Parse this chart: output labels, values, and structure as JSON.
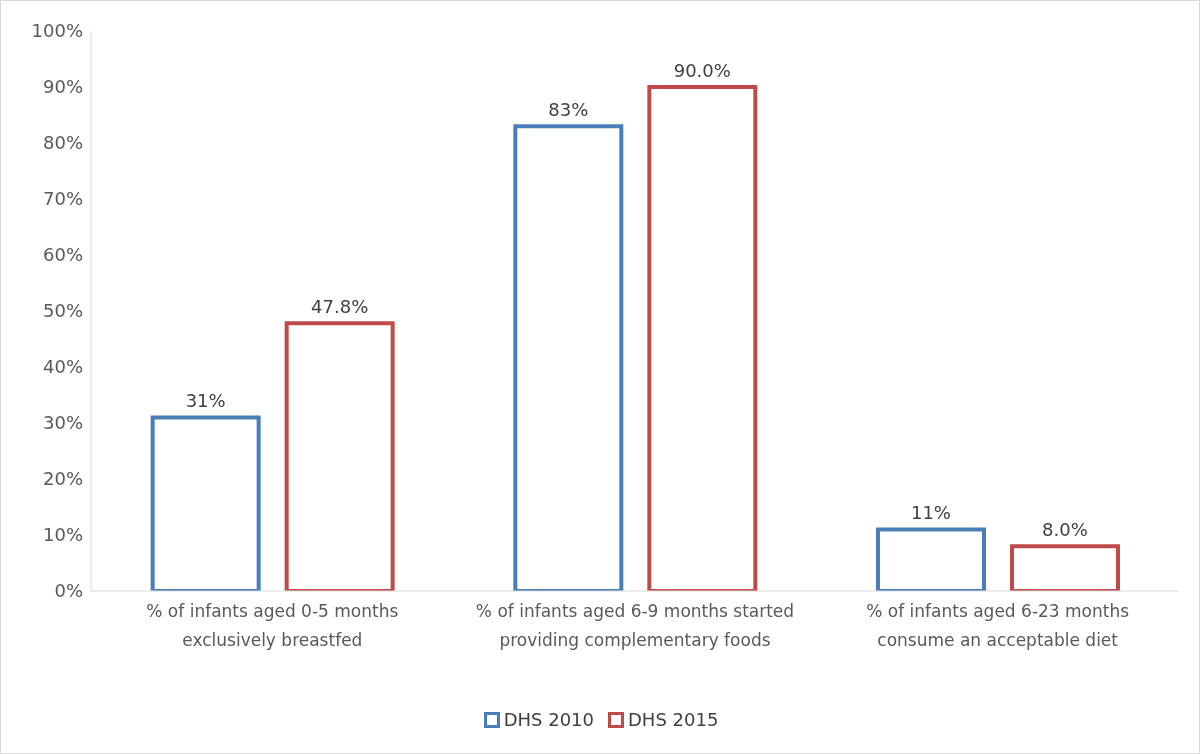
{
  "chart_data": {
    "type": "bar",
    "categories": [
      "% of infants aged 0-5 months exclusively breastfed",
      "% of infants aged 6-9 months started providing complementary foods",
      "% of infants aged 6-23 months consume an acceptable diet"
    ],
    "series": [
      {
        "name": "DHS 2010",
        "color": "#4a7ebb",
        "values": [
          31,
          83,
          11
        ],
        "value_labels": [
          "31%",
          "83%",
          "11%"
        ]
      },
      {
        "name": "DHS 2015",
        "color": "#be4b48",
        "values": [
          47.8,
          90.0,
          8.0
        ],
        "value_labels": [
          "47.8%",
          "90.0%",
          "8.0%"
        ]
      }
    ],
    "ylim": [
      0,
      100
    ],
    "yticks": [
      {
        "value": 0,
        "label": "0%"
      },
      {
        "value": 10,
        "label": "10%"
      },
      {
        "value": 20,
        "label": "20%"
      },
      {
        "value": 30,
        "label": "30%"
      },
      {
        "value": 40,
        "label": "40%"
      },
      {
        "value": 50,
        "label": "50%"
      },
      {
        "value": 60,
        "label": "60%"
      },
      {
        "value": 70,
        "label": "70%"
      },
      {
        "value": 80,
        "label": "80%"
      },
      {
        "value": 90,
        "label": "90%"
      },
      {
        "value": 100,
        "label": "100%"
      }
    ],
    "grid": false,
    "legend": "bottom"
  }
}
